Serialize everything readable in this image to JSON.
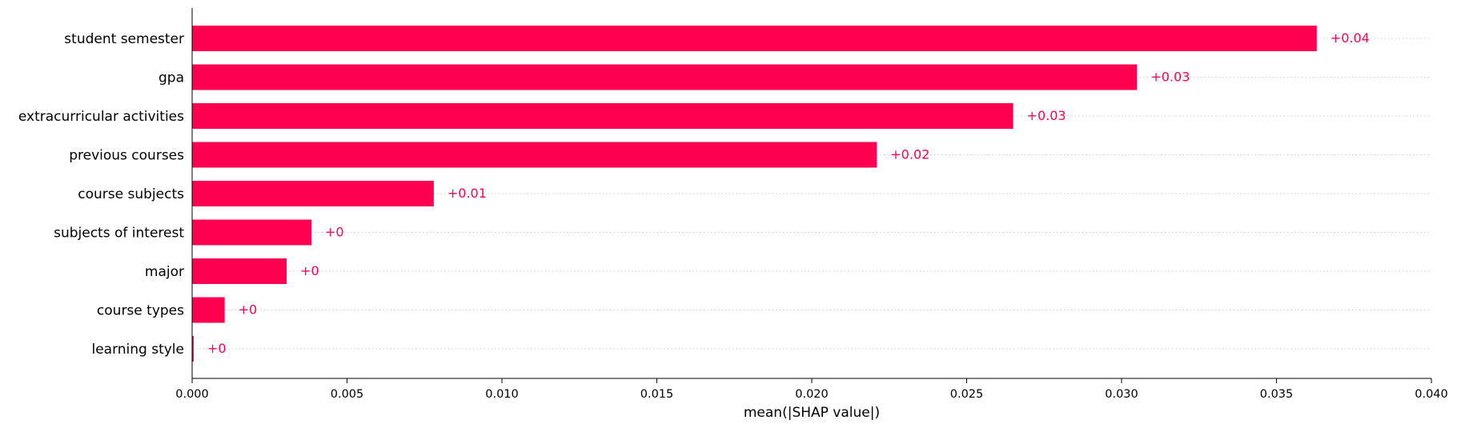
{
  "chart_data": {
    "type": "bar",
    "orientation": "horizontal",
    "categories": [
      "student semester",
      "gpa",
      "extracurricular activities",
      "previous courses",
      "course subjects",
      "subjects of interest",
      "major",
      "course types",
      "learning style"
    ],
    "values": [
      0.0363,
      0.0305,
      0.0265,
      0.0221,
      0.0078,
      0.00385,
      0.00305,
      0.00105,
      5e-05
    ],
    "value_labels": [
      "+0.04",
      "+0.03",
      "+0.03",
      "+0.02",
      "+0.01",
      "+0",
      "+0",
      "+0",
      "+0"
    ],
    "xlabel": "mean(|SHAP value|)",
    "ylabel": "",
    "xlim": [
      0,
      0.04
    ],
    "xticks": [
      0,
      0.005,
      0.01,
      0.015,
      0.02,
      0.025,
      0.03,
      0.035,
      0.04
    ],
    "xtick_labels": [
      "0.000",
      "0.005",
      "0.010",
      "0.015",
      "0.020",
      "0.025",
      "0.030",
      "0.035",
      "0.040"
    ],
    "grid": "horizontal dotted lines per category",
    "legend": "none",
    "colors": {
      "bar": "#ff0051",
      "value_label": "#ff0051",
      "grid": "#cccccc",
      "axis": "#000000"
    }
  }
}
